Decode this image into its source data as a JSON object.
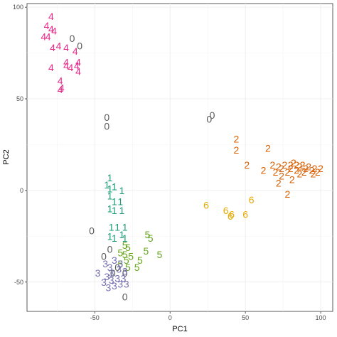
{
  "chart_data": {
    "type": "scatter",
    "xlabel": "PC1",
    "ylabel": "PC2",
    "xlim": [
      -95,
      108
    ],
    "ylim": [
      -66,
      102
    ],
    "xticks": [
      -50,
      0,
      50,
      100
    ],
    "yticks": [
      -50,
      0,
      50,
      100
    ],
    "grid": true,
    "legend": "none",
    "colors": {
      "0": "#595959",
      "1": "#1b9e77",
      "2": "#d95f02",
      "3": "#7570b3",
      "4": "#e7298a",
      "5": "#66a61e",
      "6": "#e6ab02"
    },
    "series": [
      {
        "label": "0",
        "points": [
          [
            -65,
            83
          ],
          [
            -60,
            79
          ],
          [
            -42,
            40
          ],
          [
            -42,
            35
          ],
          [
            26,
            39
          ],
          [
            28,
            41
          ],
          [
            -52,
            -22
          ],
          [
            -44,
            -36
          ],
          [
            -40,
            -32
          ],
          [
            -35,
            -42
          ],
          [
            -38,
            -45
          ],
          [
            -30,
            -45
          ],
          [
            -30,
            -58
          ]
        ]
      },
      {
        "label": "4",
        "points": [
          [
            -79,
            95
          ],
          [
            -82,
            90
          ],
          [
            -79,
            88
          ],
          [
            -84,
            84
          ],
          [
            -81,
            84
          ],
          [
            -77,
            87
          ],
          [
            -78,
            78
          ],
          [
            -74,
            79
          ],
          [
            -69,
            78
          ],
          [
            -63,
            76
          ],
          [
            -69,
            70
          ],
          [
            -69,
            68
          ],
          [
            -66,
            67
          ],
          [
            -61,
            70
          ],
          [
            -62,
            68
          ],
          [
            -61,
            65
          ],
          [
            -79,
            67
          ],
          [
            -73,
            60
          ],
          [
            -72,
            56
          ],
          [
            -73,
            55
          ]
        ]
      },
      {
        "label": "1",
        "points": [
          [
            -40,
            7
          ],
          [
            -42,
            3
          ],
          [
            -40,
            1
          ],
          [
            -37,
            2
          ],
          [
            -32,
            0
          ],
          [
            -40,
            -3
          ],
          [
            -37,
            -6
          ],
          [
            -33,
            -6
          ],
          [
            -40,
            -10
          ],
          [
            -37,
            -11
          ],
          [
            -32,
            -11
          ],
          [
            -39,
            -20
          ],
          [
            -35,
            -20
          ],
          [
            -30,
            -20
          ],
          [
            -40,
            -25
          ],
          [
            -37,
            -26
          ],
          [
            -32,
            -24
          ],
          [
            -30,
            -26
          ]
        ]
      },
      {
        "label": "5",
        "points": [
          [
            -15,
            -24
          ],
          [
            -13,
            -26
          ],
          [
            -30,
            -30
          ],
          [
            -28,
            -31
          ],
          [
            -33,
            -34
          ],
          [
            -30,
            -35
          ],
          [
            -26,
            -36
          ],
          [
            -29,
            -38
          ],
          [
            -33,
            -40
          ],
          [
            -28,
            -42
          ],
          [
            -16,
            -33
          ],
          [
            -7,
            -35
          ],
          [
            -20,
            -38
          ],
          [
            -22,
            -42
          ]
        ]
      },
      {
        "label": "3",
        "points": [
          [
            -43,
            -40
          ],
          [
            -40,
            -42
          ],
          [
            -37,
            -38
          ],
          [
            -33,
            -40
          ],
          [
            -48,
            -45
          ],
          [
            -42,
            -47
          ],
          [
            -39,
            -45
          ],
          [
            -34,
            -43
          ],
          [
            -30,
            -44
          ],
          [
            -44,
            -50
          ],
          [
            -39,
            -49
          ],
          [
            -35,
            -48
          ],
          [
            -31,
            -48
          ],
          [
            -41,
            -53
          ],
          [
            -37,
            -52
          ],
          [
            -33,
            -51
          ],
          [
            -29,
            -51
          ]
        ]
      },
      {
        "label": "6",
        "points": [
          [
            24,
            -8
          ],
          [
            37,
            -11
          ],
          [
            41,
            -13
          ],
          [
            54,
            -5
          ],
          [
            50,
            -13
          ],
          [
            40,
            -14
          ]
        ]
      },
      {
        "label": "2",
        "points": [
          [
            44,
            28
          ],
          [
            44,
            22
          ],
          [
            65,
            23
          ],
          [
            51,
            14
          ],
          [
            62,
            11
          ],
          [
            68,
            14
          ],
          [
            72,
            13
          ],
          [
            70,
            10
          ],
          [
            74,
            12
          ],
          [
            76,
            14
          ],
          [
            80,
            12
          ],
          [
            82,
            15
          ],
          [
            84,
            14
          ],
          [
            86,
            13
          ],
          [
            88,
            14
          ],
          [
            90,
            12
          ],
          [
            92,
            13
          ],
          [
            94,
            11
          ],
          [
            96,
            12
          ],
          [
            78,
            10
          ],
          [
            86,
            9
          ],
          [
            74,
            8
          ],
          [
            72,
            4
          ],
          [
            81,
            6
          ],
          [
            89,
            10
          ],
          [
            95,
            9
          ],
          [
            98,
            10
          ],
          [
            100,
            12
          ],
          [
            80,
            14
          ],
          [
            84,
            11
          ],
          [
            78,
            -2
          ]
        ]
      }
    ]
  }
}
